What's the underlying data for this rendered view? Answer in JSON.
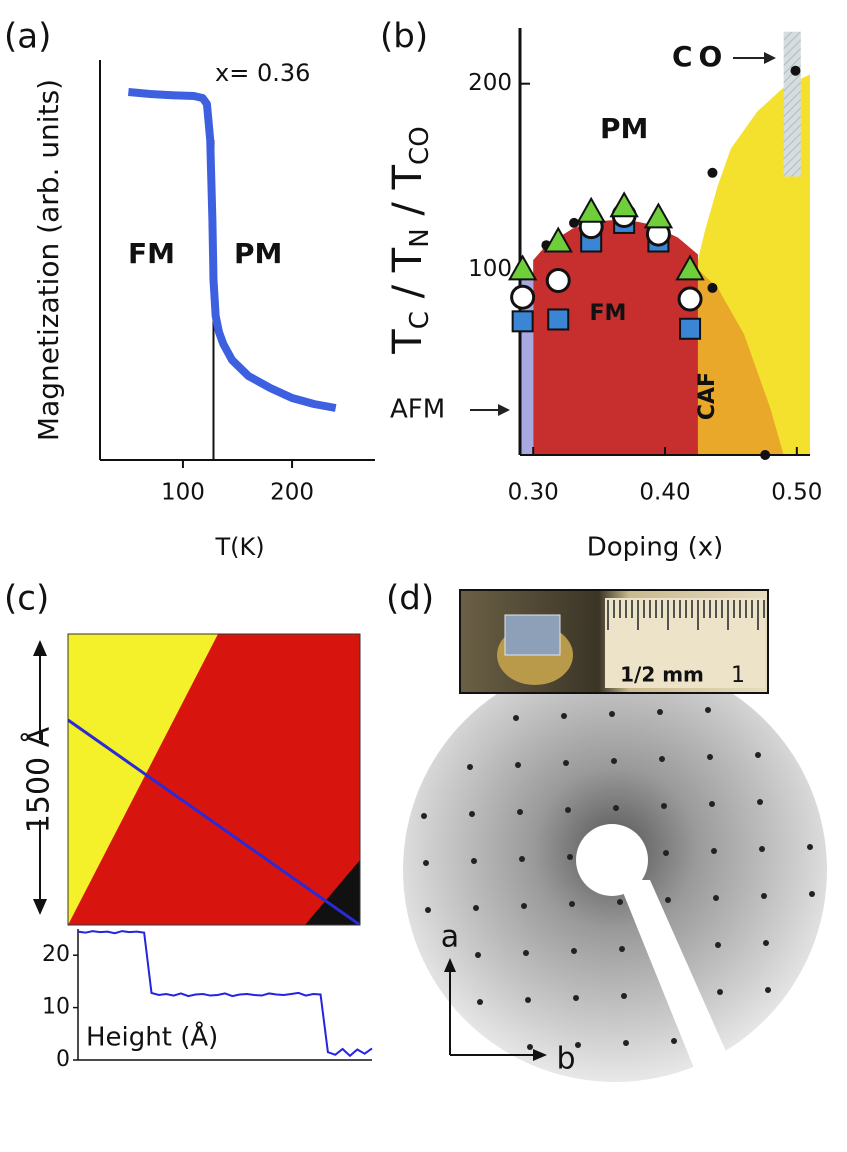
{
  "panels": [
    "(a)",
    "(b)",
    "(c)",
    "(d)"
  ],
  "chart_data": [
    {
      "type": "line",
      "xlabel": "T(K)",
      "ylabel": "Magnetization (arb. units)",
      "x": [
        50,
        70,
        90,
        110,
        118,
        122,
        125,
        127,
        128,
        130,
        133,
        137,
        145,
        160,
        180,
        200,
        220,
        240
      ],
      "values": [
        9.2,
        9.15,
        9.12,
        9.1,
        9.05,
        8.9,
        8,
        6,
        4.5,
        3.6,
        3.2,
        2.9,
        2.5,
        2.1,
        1.8,
        1.55,
        1.4,
        1.3
      ],
      "color": "#3d60e0",
      "vline": 128,
      "xlim": [
        24,
        276
      ],
      "xticks": [
        100,
        200
      ],
      "ylim": [
        0,
        10
      ],
      "annotations": [
        "x= 0.36",
        "FM",
        "PM"
      ]
    },
    {
      "type": "scatter",
      "xlabel": "Doping (x)",
      "ylabel": [
        "T",
        "C",
        " / T",
        "N",
        " / T",
        "CO"
      ],
      "xlim": [
        0.29,
        0.51
      ],
      "xticks": [
        {
          "value": 0.3,
          "label": "0.30"
        },
        {
          "value": 0.4,
          "label": "0.40"
        },
        {
          "value": 0.5,
          "label": "0.50"
        }
      ],
      "ylim": [
        0,
        230
      ],
      "yticks": [
        100,
        200
      ],
      "annotations": [
        "PM",
        "CO"
      ],
      "co_band": {
        "x": [
          0.49,
          0.503
        ],
        "y": [
          150,
          228
        ]
      },
      "regions": [
        {
          "color": "#f4e12e",
          "x": [
            0.425,
            0.43,
            0.44,
            0.45,
            0.47,
            0.49,
            0.51,
            0.51,
            0.425
          ],
          "y": [
            105,
            120,
            145,
            165,
            185,
            198,
            205,
            0,
            0
          ]
        },
        {
          "name": "CAF",
          "color": "#e9a82a",
          "x": [
            0.425,
            0.44,
            0.46,
            0.48,
            0.49,
            0.425
          ],
          "y": [
            100,
            90,
            65,
            25,
            0,
            0
          ]
        },
        {
          "name": "FM",
          "color": "#c62f2e",
          "x": [
            0.3,
            0.31,
            0.33,
            0.35,
            0.37,
            0.39,
            0.41,
            0.425,
            0.425,
            0.3
          ],
          "y": [
            105,
            113,
            122,
            126,
            127,
            124,
            117,
            108,
            0,
            0
          ]
        },
        {
          "name": "AFM",
          "color": "#a9a9e2",
          "x": [
            0.29,
            0.3,
            0.3,
            0.29
          ],
          "y": [
            95,
            95,
            0,
            0
          ]
        }
      ],
      "series": [
        {
          "marker": "dot",
          "color": "#111111",
          "x": [
            0.31,
            0.331,
            0.436,
            0.436,
            0.476,
            0.499
          ],
          "values": [
            113,
            125,
            152,
            90,
            0,
            207
          ]
        },
        {
          "marker": "square",
          "color": "#3a86d4",
          "x": [
            0.292,
            0.319,
            0.344,
            0.369,
            0.395,
            0.419
          ],
          "values": [
            72,
            73,
            115,
            125,
            115,
            68
          ]
        },
        {
          "marker": "circle",
          "color": "#ffffff",
          "x": [
            0.292,
            0.319,
            0.344,
            0.369,
            0.395,
            0.419
          ],
          "values": [
            85,
            94,
            123,
            129,
            119,
            84
          ]
        },
        {
          "marker": "triangle",
          "color": "#6fcf3b",
          "x": [
            0.292,
            0.319,
            0.344,
            0.369,
            0.395,
            0.419
          ],
          "values": [
            100,
            115,
            131,
            134,
            128,
            100
          ]
        }
      ]
    },
    {
      "type": "line",
      "ylabel": "Height (Å)",
      "color": "#2323e0",
      "values": [
        24.5,
        24.3,
        24.6,
        24.4,
        24.5,
        24.2,
        24.6,
        24.4,
        24.5,
        24.3,
        12.8,
        12.4,
        12.6,
        12.3,
        12.7,
        12.2,
        12.5,
        12.6,
        12.3,
        12.4,
        12.7,
        12.2,
        12.5,
        12.6,
        12.4,
        12.3,
        12.7,
        12.5,
        12.4,
        12.6,
        12.8,
        12.3,
        12.6,
        12.5,
        1.5,
        1.0,
        2.1,
        0.8,
        2.0,
        1.2,
        2.2
      ],
      "ylim": [
        0,
        25
      ],
      "yticks": [
        0,
        10,
        20
      ]
    }
  ],
  "image_c": {
    "scale_label": "1500 Å"
  },
  "image_d": {
    "ruler_label": "1/2 mm",
    "ruler_number": "1",
    "axis_a": "a",
    "axis_b": "b"
  }
}
